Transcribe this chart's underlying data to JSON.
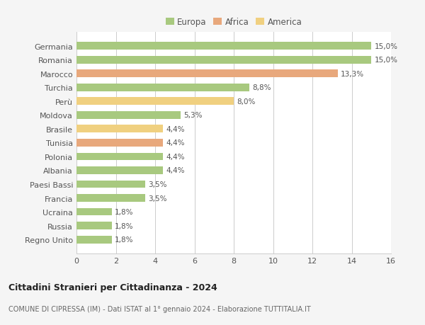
{
  "categories": [
    "Germania",
    "Romania",
    "Marocco",
    "Turchia",
    "Perù",
    "Moldova",
    "Brasile",
    "Tunisia",
    "Polonia",
    "Albania",
    "Paesi Bassi",
    "Francia",
    "Ucraina",
    "Russia",
    "Regno Unito"
  ],
  "values": [
    15.0,
    15.0,
    13.3,
    8.8,
    8.0,
    5.3,
    4.4,
    4.4,
    4.4,
    4.4,
    3.5,
    3.5,
    1.8,
    1.8,
    1.8
  ],
  "labels": [
    "15,0%",
    "15,0%",
    "13,3%",
    "8,8%",
    "8,0%",
    "5,3%",
    "4,4%",
    "4,4%",
    "4,4%",
    "4,4%",
    "3,5%",
    "3,5%",
    "1,8%",
    "1,8%",
    "1,8%"
  ],
  "continents": [
    "Europa",
    "Europa",
    "Africa",
    "Europa",
    "America",
    "Europa",
    "America",
    "Africa",
    "Europa",
    "Europa",
    "Europa",
    "Europa",
    "Europa",
    "Europa",
    "Europa"
  ],
  "colors": {
    "Europa": "#a8c97f",
    "Africa": "#e8a87c",
    "America": "#f0d080"
  },
  "legend_labels": [
    "Europa",
    "Africa",
    "America"
  ],
  "xlim": [
    0,
    16
  ],
  "xticks": [
    0,
    2,
    4,
    6,
    8,
    10,
    12,
    14,
    16
  ],
  "title": "Cittadini Stranieri per Cittadinanza - 2024",
  "subtitle": "COMUNE DI CIPRESSA (IM) - Dati ISTAT al 1° gennaio 2024 - Elaborazione TUTTITALIA.IT",
  "plot_bg_color": "#ffffff",
  "fig_bg_color": "#f5f5f5",
  "bar_edge_color": "none",
  "grid_color": "#cccccc",
  "text_color": "#555555",
  "title_color": "#222222",
  "subtitle_color": "#666666",
  "bar_height": 0.55
}
